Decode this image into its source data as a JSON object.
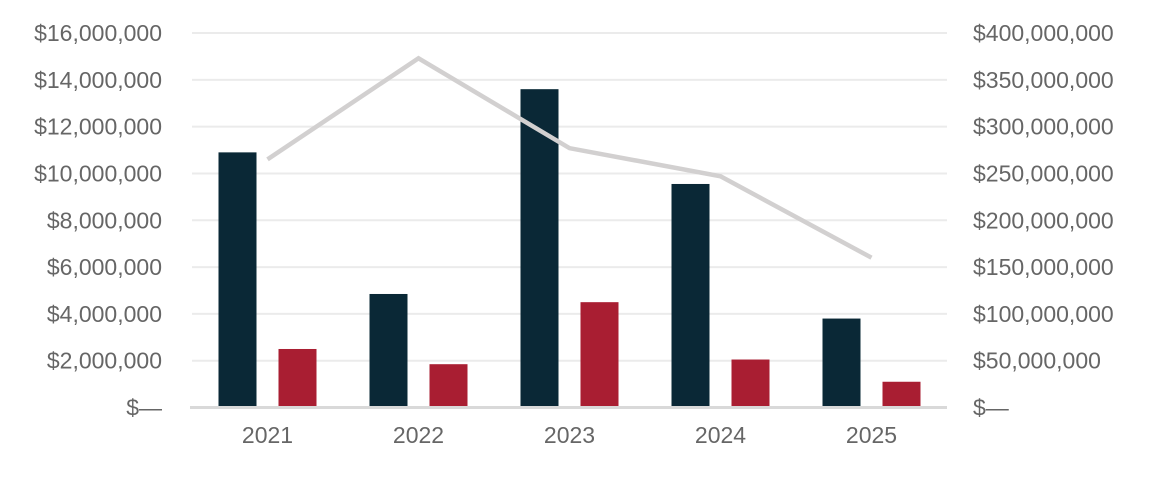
{
  "chart_data": {
    "type": "combo",
    "title": "",
    "legend": "none",
    "grid": true,
    "categories": [
      "2021",
      "2022",
      "2023",
      "2024",
      "2025"
    ],
    "series": [
      {
        "id": "bars-navy",
        "kind": "bar",
        "axis": "left",
        "color": "#0a2836",
        "values": [
          10900000,
          4850000,
          13600000,
          9550000,
          3800000
        ]
      },
      {
        "id": "bars-crimson",
        "kind": "bar",
        "axis": "left",
        "color": "#a91e32",
        "values": [
          2500000,
          1850000,
          4500000,
          2050000,
          1100000
        ]
      },
      {
        "id": "line-gray",
        "kind": "line",
        "axis": "right",
        "color": "#d2d0d0",
        "values": [
          265000000,
          373000000,
          277000000,
          247000000,
          160000000
        ]
      }
    ],
    "left_axis": {
      "min": 0,
      "max": 16000000,
      "step": 2000000,
      "ticks": [
        "$—",
        "$2,000,000",
        "$4,000,000",
        "$6,000,000",
        "$8,000,000",
        "$10,000,000",
        "$12,000,000",
        "$14,000,000",
        "$16,000,000"
      ]
    },
    "right_axis": {
      "min": 0,
      "max": 400000000,
      "step": 50000000,
      "ticks": [
        "$—",
        "$50,000,000",
        "$100,000,000",
        "$150,000,000",
        "$200,000,000",
        "$250,000,000",
        "$300,000,000",
        "$350,000,000",
        "$400,000,000"
      ]
    },
    "style": {
      "gridline_color": "#ebebeb",
      "axis_line_color": "#d9d9d9",
      "label_color": "#666666",
      "background": "#ffffff"
    }
  }
}
